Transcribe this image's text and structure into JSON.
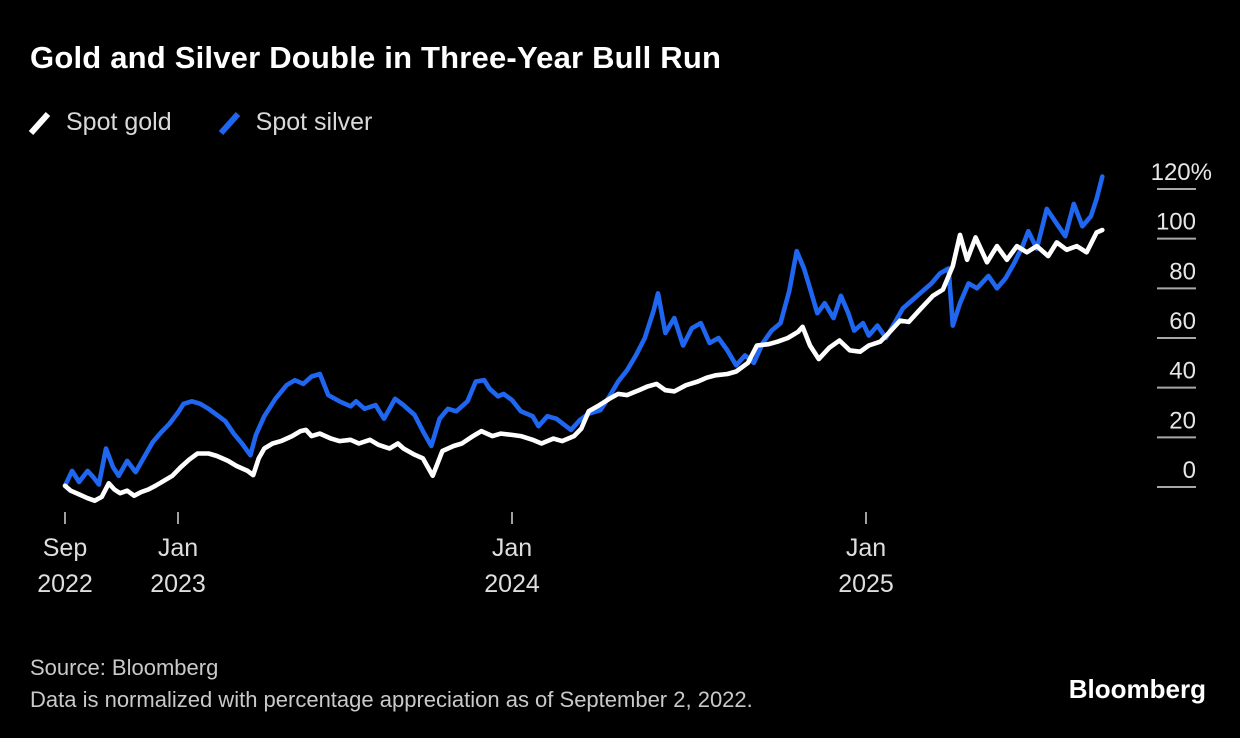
{
  "header": {
    "title": "Gold and Silver Double in Three-Year Bull Run"
  },
  "legend": {
    "items": [
      {
        "label": "Spot gold",
        "color": "#ffffff"
      },
      {
        "label": "Spot silver",
        "color": "#1f66f0"
      }
    ]
  },
  "chart_data": {
    "type": "line",
    "title": "Gold and Silver Double in Three-Year Bull Run",
    "x_unit": "months since Sep 2022",
    "grid": false,
    "legend_position": "top-left",
    "y_axis": {
      "unit": "%",
      "min": -8,
      "max": 126,
      "side": "right",
      "ticks": [
        {
          "value": 120,
          "label": "120%"
        },
        {
          "value": 100,
          "label": "100"
        },
        {
          "value": 80,
          "label": "80"
        },
        {
          "value": 60,
          "label": "60"
        },
        {
          "value": 40,
          "label": "40"
        },
        {
          "value": 20,
          "label": "20"
        },
        {
          "value": 0,
          "label": "0"
        }
      ]
    },
    "x_axis": {
      "ticks": [
        {
          "month": 0,
          "line1": "Sep",
          "line2": "2022"
        },
        {
          "month": 4,
          "line1": "Jan",
          "line2": "2023"
        },
        {
          "month": 16,
          "line1": "Jan",
          "line2": "2024"
        },
        {
          "month": 28,
          "line1": "Jan",
          "line2": "2025"
        }
      ]
    },
    "series": [
      {
        "name": "Spot silver",
        "color": "#1f66f0",
        "points": [
          [
            0,
            0.5
          ],
          [
            0.25,
            6.5
          ],
          [
            0.5,
            2
          ],
          [
            0.8,
            6.5
          ],
          [
            1,
            4
          ],
          [
            1.2,
            1
          ],
          [
            1.45,
            15.5
          ],
          [
            1.7,
            8
          ],
          [
            1.9,
            4.5
          ],
          [
            2.2,
            10.5
          ],
          [
            2.5,
            6
          ],
          [
            2.8,
            12
          ],
          [
            3.1,
            18
          ],
          [
            3.4,
            22
          ],
          [
            3.7,
            25.5
          ],
          [
            4,
            30
          ],
          [
            4.2,
            33.5
          ],
          [
            4.5,
            34.5
          ],
          [
            4.8,
            33.5
          ],
          [
            5.1,
            31.5
          ],
          [
            5.4,
            29
          ],
          [
            5.7,
            26.5
          ],
          [
            6,
            21.5
          ],
          [
            6.3,
            17.5
          ],
          [
            6.6,
            12.8
          ],
          [
            6.8,
            21
          ],
          [
            7.1,
            28.5
          ],
          [
            7.5,
            35.5
          ],
          [
            7.9,
            41
          ],
          [
            8.2,
            43
          ],
          [
            8.5,
            41.5
          ],
          [
            8.8,
            44.5
          ],
          [
            9.1,
            45.5
          ],
          [
            9.4,
            37
          ],
          [
            9.8,
            34.5
          ],
          [
            10.2,
            32.5
          ],
          [
            10.4,
            34.5
          ],
          [
            10.7,
            31.5
          ],
          [
            11.1,
            33
          ],
          [
            11.4,
            27.5
          ],
          [
            11.8,
            35.5
          ],
          [
            12.1,
            33
          ],
          [
            12.5,
            29
          ],
          [
            12.8,
            22.5
          ],
          [
            13.1,
            16.5
          ],
          [
            13.4,
            27.5
          ],
          [
            13.7,
            31.5
          ],
          [
            14,
            30.5
          ],
          [
            14.4,
            34.5
          ],
          [
            14.7,
            42.5
          ],
          [
            15,
            43
          ],
          [
            15.2,
            39.5
          ],
          [
            15.5,
            36.5
          ],
          [
            15.7,
            37.5
          ],
          [
            16,
            35
          ],
          [
            16.3,
            30.5
          ],
          [
            16.7,
            28.5
          ],
          [
            16.9,
            24.5
          ],
          [
            17.2,
            28.5
          ],
          [
            17.5,
            27.5
          ],
          [
            18,
            23
          ],
          [
            18.3,
            27
          ],
          [
            18.6,
            29.5
          ],
          [
            19,
            31
          ],
          [
            19.3,
            36.5
          ],
          [
            19.6,
            42.5
          ],
          [
            19.9,
            47
          ],
          [
            20.2,
            53
          ],
          [
            20.5,
            60
          ],
          [
            20.8,
            71
          ],
          [
            20.95,
            78
          ],
          [
            21.2,
            62
          ],
          [
            21.5,
            68
          ],
          [
            21.8,
            57
          ],
          [
            22.1,
            64
          ],
          [
            22.4,
            66
          ],
          [
            22.7,
            58
          ],
          [
            23,
            60
          ],
          [
            23.3,
            55
          ],
          [
            23.6,
            49
          ],
          [
            23.9,
            53
          ],
          [
            24.2,
            50
          ],
          [
            24.5,
            58
          ],
          [
            24.8,
            63
          ],
          [
            25.1,
            66
          ],
          [
            25.4,
            79
          ],
          [
            25.65,
            95
          ],
          [
            25.9,
            88
          ],
          [
            26.1,
            80
          ],
          [
            26.35,
            70
          ],
          [
            26.6,
            74
          ],
          [
            26.9,
            68
          ],
          [
            27.15,
            77
          ],
          [
            27.4,
            70
          ],
          [
            27.6,
            63
          ],
          [
            27.9,
            66
          ],
          [
            28.1,
            61
          ],
          [
            28.4,
            65
          ],
          [
            28.7,
            60
          ],
          [
            29,
            66
          ],
          [
            29.3,
            72
          ],
          [
            29.6,
            75
          ],
          [
            29.9,
            78
          ],
          [
            30.3,
            82
          ],
          [
            30.6,
            86
          ],
          [
            30.9,
            88
          ],
          [
            31.05,
            65
          ],
          [
            31.3,
            74
          ],
          [
            31.6,
            82
          ],
          [
            31.9,
            80
          ],
          [
            32.3,
            85
          ],
          [
            32.6,
            80
          ],
          [
            32.9,
            84
          ],
          [
            33.2,
            90
          ],
          [
            33.5,
            97
          ],
          [
            33.7,
            103
          ],
          [
            34,
            96
          ],
          [
            34.35,
            112
          ],
          [
            34.7,
            106
          ],
          [
            35,
            101
          ],
          [
            35.3,
            114
          ],
          [
            35.6,
            105
          ],
          [
            35.9,
            109
          ],
          [
            36.1,
            116
          ],
          [
            36.3,
            125
          ]
        ]
      },
      {
        "name": "Spot gold",
        "color": "#ffffff",
        "points": [
          [
            0,
            0.5
          ],
          [
            0.2,
            -1.5
          ],
          [
            0.5,
            -3
          ],
          [
            0.8,
            -4.5
          ],
          [
            1.05,
            -5.5
          ],
          [
            1.3,
            -4
          ],
          [
            1.55,
            1.5
          ],
          [
            1.75,
            -1
          ],
          [
            1.95,
            -2.5
          ],
          [
            2.2,
            -1.5
          ],
          [
            2.45,
            -3.5
          ],
          [
            2.7,
            -2
          ],
          [
            2.95,
            -1
          ],
          [
            3.2,
            0.5
          ],
          [
            3.5,
            2.5
          ],
          [
            3.8,
            4.5
          ],
          [
            4.1,
            8
          ],
          [
            4.4,
            11
          ],
          [
            4.7,
            13.5
          ],
          [
            5.1,
            13.5
          ],
          [
            5.4,
            12.5
          ],
          [
            5.8,
            10.5
          ],
          [
            6.1,
            8.5
          ],
          [
            6.5,
            6.5
          ],
          [
            6.7,
            4.8
          ],
          [
            6.9,
            11.5
          ],
          [
            7.1,
            15.5
          ],
          [
            7.4,
            17.5
          ],
          [
            7.7,
            18.5
          ],
          [
            8.1,
            20.5
          ],
          [
            8.4,
            22.5
          ],
          [
            8.6,
            23
          ],
          [
            8.8,
            20.5
          ],
          [
            9.1,
            21.5
          ],
          [
            9.5,
            19.5
          ],
          [
            9.8,
            18.5
          ],
          [
            10.2,
            19
          ],
          [
            10.5,
            17.5
          ],
          [
            10.9,
            19
          ],
          [
            11.2,
            17
          ],
          [
            11.6,
            15.5
          ],
          [
            11.9,
            17.5
          ],
          [
            12.1,
            15.5
          ],
          [
            12.5,
            13
          ],
          [
            12.8,
            11.5
          ],
          [
            13.15,
            4.5
          ],
          [
            13.5,
            14.5
          ],
          [
            13.9,
            16.5
          ],
          [
            14.2,
            17.5
          ],
          [
            14.6,
            20.5
          ],
          [
            14.9,
            22.5
          ],
          [
            15.3,
            20.5
          ],
          [
            15.6,
            21.5
          ],
          [
            16,
            21
          ],
          [
            16.3,
            20.5
          ],
          [
            16.7,
            19
          ],
          [
            17,
            17.5
          ],
          [
            17.4,
            19.5
          ],
          [
            17.7,
            18.5
          ],
          [
            18.1,
            20.5
          ],
          [
            18.35,
            23.5
          ],
          [
            18.6,
            30.5
          ],
          [
            18.9,
            32.5
          ],
          [
            19.3,
            35.5
          ],
          [
            19.6,
            37.5
          ],
          [
            19.9,
            37
          ],
          [
            20.3,
            39
          ],
          [
            20.6,
            40.5
          ],
          [
            20.9,
            41.5
          ],
          [
            21.2,
            39
          ],
          [
            21.5,
            38.5
          ],
          [
            21.9,
            41
          ],
          [
            22.3,
            42.5
          ],
          [
            22.6,
            44
          ],
          [
            22.9,
            45
          ],
          [
            23.3,
            45.5
          ],
          [
            23.6,
            46.5
          ],
          [
            24,
            50
          ],
          [
            24.3,
            57
          ],
          [
            24.7,
            57.5
          ],
          [
            25,
            58.5
          ],
          [
            25.35,
            60
          ],
          [
            25.7,
            62.5
          ],
          [
            25.85,
            64.5
          ],
          [
            26.1,
            57
          ],
          [
            26.4,
            51.5
          ],
          [
            26.75,
            56
          ],
          [
            27.1,
            59
          ],
          [
            27.45,
            55
          ],
          [
            27.8,
            54.5
          ],
          [
            28.1,
            57
          ],
          [
            28.5,
            58.5
          ],
          [
            28.8,
            62
          ],
          [
            29.2,
            67
          ],
          [
            29.5,
            66.5
          ],
          [
            29.9,
            71.5
          ],
          [
            30.35,
            77
          ],
          [
            30.7,
            79.5
          ],
          [
            31.05,
            89
          ],
          [
            31.3,
            101.5
          ],
          [
            31.55,
            91.5
          ],
          [
            31.85,
            100.5
          ],
          [
            32.25,
            90.5
          ],
          [
            32.6,
            97
          ],
          [
            32.95,
            91.5
          ],
          [
            33.3,
            97
          ],
          [
            33.65,
            94.5
          ],
          [
            34,
            97
          ],
          [
            34.4,
            93
          ],
          [
            34.7,
            98.5
          ],
          [
            35.05,
            95.5
          ],
          [
            35.4,
            97
          ],
          [
            35.75,
            94.5
          ],
          [
            36.1,
            102.5
          ],
          [
            36.3,
            103.5
          ]
        ]
      }
    ]
  },
  "footer": {
    "source": "Source: Bloomberg",
    "note": "Data is normalized with percentage appreciation as of September 2, 2022.",
    "logo": "Bloomberg"
  }
}
